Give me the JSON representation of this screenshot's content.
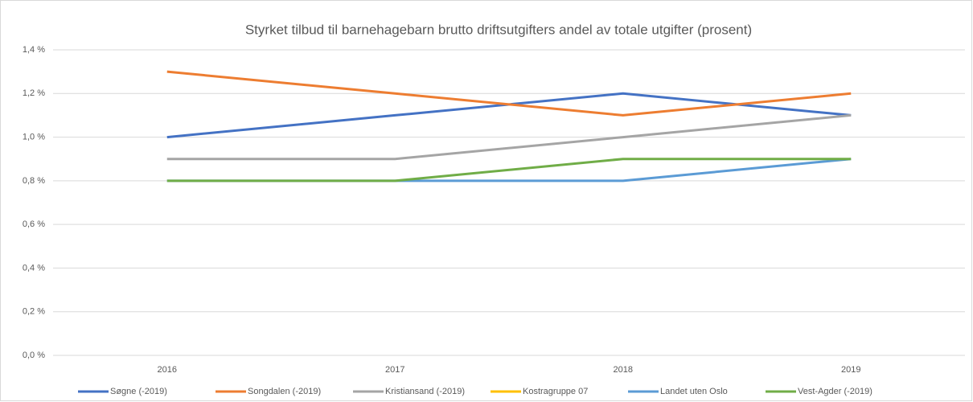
{
  "chart_data": {
    "type": "line",
    "title": "Styrket tilbud til barnehagebarn brutto driftsutgifters andel av totale utgifter (prosent)",
    "categories": [
      "2016",
      "2017",
      "2018",
      "2019"
    ],
    "series": [
      {
        "name": "Søgne (-2019)",
        "color": "#4472c4",
        "values": [
          1.0,
          1.1,
          1.2,
          1.1
        ]
      },
      {
        "name": "Songdalen (-2019)",
        "color": "#ed7d31",
        "values": [
          1.3,
          1.2,
          1.1,
          1.2
        ]
      },
      {
        "name": "Kristiansand (-2019)",
        "color": "#a5a5a5",
        "values": [
          0.9,
          0.9,
          1.0,
          1.1
        ]
      },
      {
        "name": "Kostragruppe 07",
        "color": "#ffc000",
        "values": [
          null,
          null,
          null,
          null
        ]
      },
      {
        "name": "Landet uten Oslo",
        "color": "#5b9bd5",
        "values": [
          0.8,
          0.8,
          0.8,
          0.9
        ]
      },
      {
        "name": "Vest-Agder (-2019)",
        "color": "#70ad47",
        "values": [
          0.8,
          0.8,
          0.9,
          0.9
        ]
      }
    ],
    "ylim": [
      0,
      1.4
    ],
    "yticks": [
      {
        "value": 0,
        "label": "0,0 %"
      },
      {
        "value": 0.2,
        "label": "0,2 %"
      },
      {
        "value": 0.4,
        "label": "0,4 %"
      },
      {
        "value": 0.6,
        "label": "0,6 %"
      },
      {
        "value": 0.8,
        "label": "0,8 %"
      },
      {
        "value": 1.0,
        "label": "1,0 %"
      },
      {
        "value": 1.2,
        "label": "1,2 %"
      },
      {
        "value": 1.4,
        "label": "1,4 %"
      }
    ],
    "grid": true,
    "legend": "bottom"
  }
}
